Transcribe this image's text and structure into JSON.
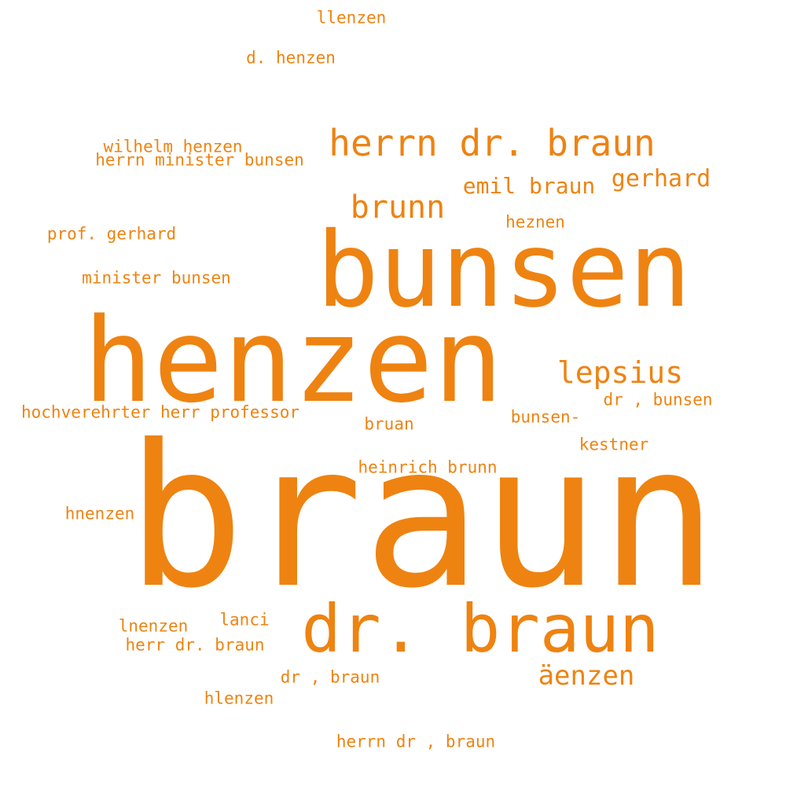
{
  "color": "#ee8311",
  "words": [
    {
      "text": "braun"
    },
    {
      "text": "henzen"
    },
    {
      "text": "bunsen"
    },
    {
      "text": "dr. braun"
    },
    {
      "text": "herrn dr. braun"
    },
    {
      "text": "brunn"
    },
    {
      "text": "lepsius"
    },
    {
      "text": "äenzen"
    },
    {
      "text": "emil braun"
    },
    {
      "text": "gerhard"
    },
    {
      "text": "llenzen"
    },
    {
      "text": "d. henzen"
    },
    {
      "text": "wilhelm henzen"
    },
    {
      "text": "herrn minister bunsen"
    },
    {
      "text": "heznen"
    },
    {
      "text": "prof. gerhard"
    },
    {
      "text": "minister bunsen"
    },
    {
      "text": "hochverehrter herr professor"
    },
    {
      "text": "dr , bunsen"
    },
    {
      "text": "bruan"
    },
    {
      "text": "bunsen-"
    },
    {
      "text": "kestner"
    },
    {
      "text": "heinrich brunn"
    },
    {
      "text": "hnenzen"
    },
    {
      "text": "lanci"
    },
    {
      "text": "lnenzen"
    },
    {
      "text": "herr dr. braun"
    },
    {
      "text": "dr , braun"
    },
    {
      "text": "hlenzen"
    },
    {
      "text": "herrn dr , braun"
    }
  ]
}
